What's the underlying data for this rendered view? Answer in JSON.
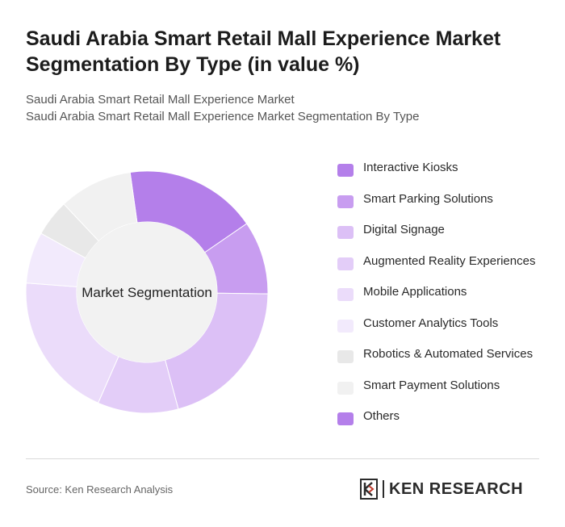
{
  "title": "Saudi Arabia Smart Retail Mall Experience Market Segmentation By Type (in value %)",
  "subtitle_line1": "Saudi Arabia Smart Retail Mall Experience Market",
  "subtitle_line2": "Saudi Arabia Smart Retail Mall Experience Market Segmentation By Type",
  "source": "Source: Ken Research Analysis",
  "logo_text": "KEN RESEARCH",
  "chart_data": {
    "type": "pie",
    "center_label": "Market Segmentation",
    "legend_position": "right",
    "categories": [
      "Interactive Kiosks",
      "Smart Parking Solutions",
      "Digital Signage",
      "Augmented Reality Experiences",
      "Mobile Applications",
      "Customer Analytics Tools",
      "Robotics & Automated Services",
      "Smart Payment Solutions",
      "Others"
    ],
    "values": [
      18,
      10,
      21,
      11,
      20,
      7,
      5,
      10,
      0
    ],
    "colors": [
      "#b47fea",
      "#c89df0",
      "#dcc0f6",
      "#e3cdf8",
      "#ebdcfa",
      "#f2eafc",
      "#e8e8e8",
      "#f1f1f1",
      "#b47fea"
    ]
  }
}
